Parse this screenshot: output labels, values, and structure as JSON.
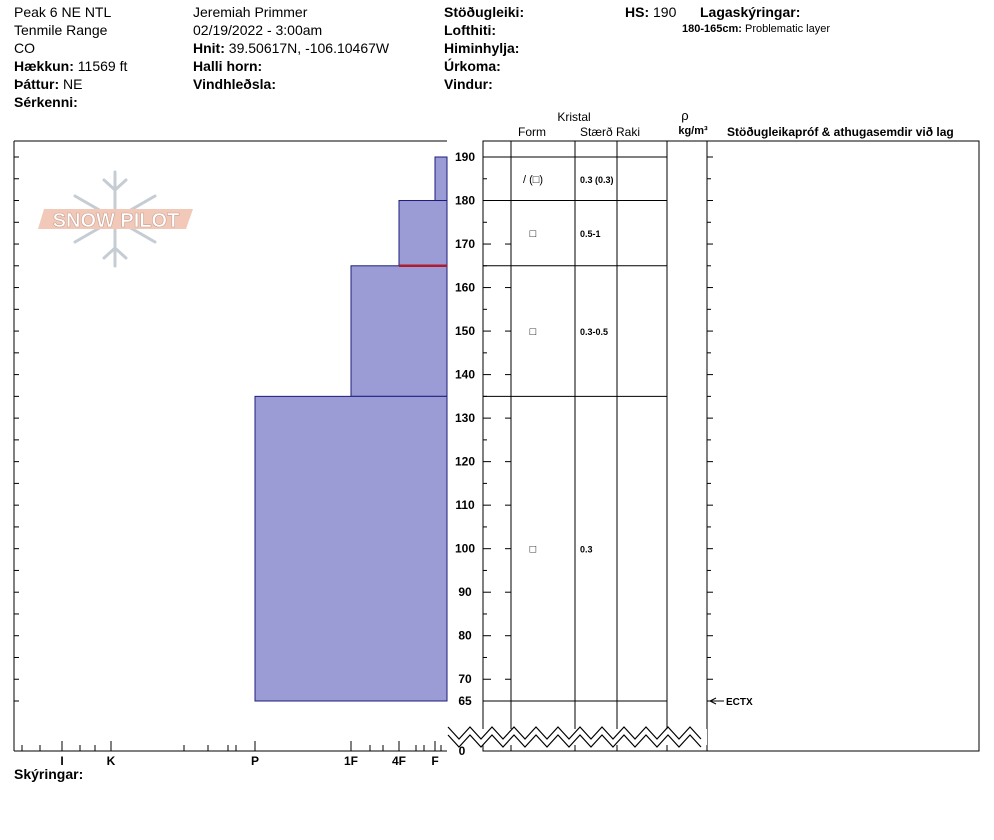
{
  "header": {
    "location": "Peak 6 NE NTL",
    "range": "Tenmile Range",
    "state": "CO",
    "elevation_label": "Hækkun:",
    "elevation_value": "11569 ft",
    "aspect_label": "Þáttur:",
    "aspect_value": "NE",
    "features_label": "Sérkenni:",
    "observer": "Jeremiah Primmer",
    "datetime": "02/19/2022 - 3:00am",
    "coords_label": "Hnit:",
    "coords_value": "39.50617N, -106.10467W",
    "slope_label": "Halli horn:",
    "wind_loading_label": "Vindhleðsla:",
    "stability_label": "Stöðugleiki:",
    "air_temp_label": "Lofthiti:",
    "sky_label": "Himinhylja:",
    "precip_label": "Úrkoma:",
    "wind_label": "Vindur:",
    "hs_label": "HS:",
    "hs_value": "190",
    "layer_notes_label": "Lagaskýringar:",
    "layer_note_range": "180-165cm:",
    "layer_note_text": "Problematic layer"
  },
  "columns": {
    "crystal": "Kristal",
    "form": "Form",
    "size": "Stærð",
    "moisture": "Raki",
    "rho": "ρ",
    "density_unit": "kg/m³",
    "tests_header": "Stöðugleikapróf & athugasemdir við lag"
  },
  "legend_label": "Skýringar:",
  "logo_text": "SNOW PILOT",
  "chart_data": {
    "type": "bar",
    "hardness_axis": [
      "I",
      "K",
      "P",
      "1F",
      "4F",
      "F"
    ],
    "depth_ticks": [
      190,
      180,
      170,
      160,
      150,
      140,
      130,
      120,
      110,
      100,
      90,
      80,
      70,
      65,
      0
    ],
    "hs": 190,
    "layers": [
      {
        "top": 190,
        "bottom": 180,
        "hardness": "F",
        "form": "/ (□)",
        "size": "0.3 (0.3)"
      },
      {
        "top": 180,
        "bottom": 165,
        "hardness": "4F",
        "form": "□",
        "size": "0.5-1"
      },
      {
        "top": 165,
        "bottom": 135,
        "hardness": "1F",
        "form": "□",
        "size": "0.3-0.5"
      },
      {
        "top": 135,
        "bottom": 65,
        "hardness": "P",
        "form": "□",
        "size": "0.3"
      }
    ],
    "problem_layer": {
      "depth": 165,
      "color": "#b01c2e"
    },
    "tests": [
      {
        "depth": 65,
        "label": "ECTX"
      }
    ],
    "bar_color": "#9b9bd6",
    "bar_stroke": "#1c1c7a"
  }
}
